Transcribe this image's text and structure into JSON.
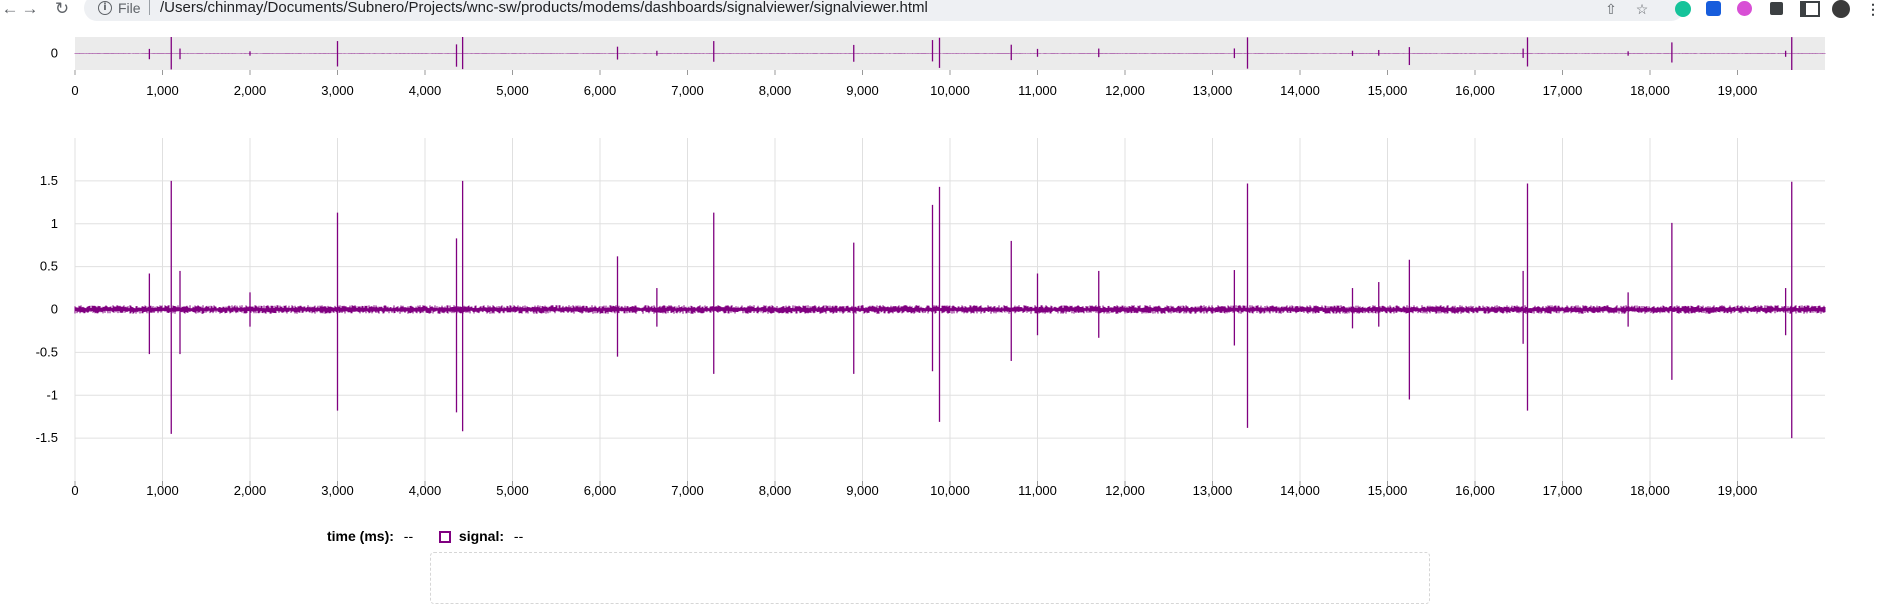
{
  "browser": {
    "back_icon": "arrow-left-icon",
    "forward_icon": "arrow-right-icon",
    "reload_icon": "reload-icon",
    "scheme_label": "File",
    "url": "/Users/chinmay/Documents/Subnero/Projects/wnc-sw/products/modems/dashboards/signalviewer/signalviewer.html",
    "toolbar_icons": [
      "share-icon",
      "star-icon",
      "grammarly-extension-icon",
      "bitwarden-extension-icon",
      "pink-extension-icon",
      "puzzle-extensions-icon",
      "sidebar-icon",
      "profile-avatar",
      "more-menu-icon"
    ]
  },
  "legend": {
    "time_label": "time (ms):",
    "time_value": "--",
    "signal_label": "signal:",
    "signal_value": "--"
  },
  "colors": {
    "signal": "#800080",
    "overview_bg": "#ebebeb",
    "grid": "#e0e0e0"
  },
  "chart_data": [
    {
      "type": "line",
      "name": "overview",
      "title": "",
      "xlabel": "",
      "ylabel": "",
      "xlim": [
        0,
        20000
      ],
      "ylim": [
        -1.5,
        1.5
      ],
      "x_ticks": [
        0,
        1000,
        2000,
        3000,
        4000,
        5000,
        6000,
        7000,
        8000,
        9000,
        10000,
        11000,
        12000,
        13000,
        14000,
        15000,
        16000,
        17000,
        18000,
        19000
      ],
      "x_tick_labels": [
        "0",
        "1,000",
        "2,000",
        "3,000",
        "4,000",
        "5,000",
        "6,000",
        "7,000",
        "8,000",
        "9,000",
        "10,000",
        "11,000",
        "12,000",
        "13,000",
        "14,000",
        "15,000",
        "16,000",
        "17,000",
        "18,000",
        "19,000"
      ],
      "y_ticks": [
        0
      ],
      "y_tick_labels": [
        "0"
      ],
      "grid": false
    },
    {
      "type": "line",
      "name": "main",
      "title": "",
      "xlabel": "",
      "ylabel": "",
      "xlim": [
        0,
        20000
      ],
      "ylim": [
        -2,
        2
      ],
      "x_ticks": [
        0,
        1000,
        2000,
        3000,
        4000,
        5000,
        6000,
        7000,
        8000,
        9000,
        10000,
        11000,
        12000,
        13000,
        14000,
        15000,
        16000,
        17000,
        18000,
        19000
      ],
      "x_tick_labels": [
        "0",
        "1,000",
        "2,000",
        "3,000",
        "4,000",
        "5,000",
        "6,000",
        "7,000",
        "8,000",
        "9,000",
        "10,000",
        "11,000",
        "12,000",
        "13,000",
        "14,000",
        "15,000",
        "16,000",
        "17,000",
        "18,000",
        "19,000"
      ],
      "y_ticks": [
        1.5,
        1,
        0.5,
        0,
        -0.5,
        -1,
        -1.5
      ],
      "y_tick_labels": [
        "1.5",
        "1",
        "0.5",
        "0",
        "-0.5",
        "-1",
        "-1.5"
      ],
      "grid": true,
      "series": [
        {
          "baseline_noise_amplitude": 0.05,
          "spikes": [
            {
              "x": 850,
              "max": 0.42,
              "min": -0.52
            },
            {
              "x": 1100,
              "max": 1.5,
              "min": -1.45
            },
            {
              "x": 1200,
              "max": 0.45,
              "min": -0.52
            },
            {
              "x": 2000,
              "max": 0.2,
              "min": -0.2
            },
            {
              "x": 3000,
              "max": 1.13,
              "min": -1.18
            },
            {
              "x": 4360,
              "max": 0.83,
              "min": -1.2
            },
            {
              "x": 4430,
              "max": 1.5,
              "min": -1.42
            },
            {
              "x": 6200,
              "max": 0.62,
              "min": -0.55
            },
            {
              "x": 6650,
              "max": 0.25,
              "min": -0.2
            },
            {
              "x": 7300,
              "max": 1.13,
              "min": -0.75
            },
            {
              "x": 8900,
              "max": 0.78,
              "min": -0.75
            },
            {
              "x": 9800,
              "max": 1.22,
              "min": -0.72
            },
            {
              "x": 9880,
              "max": 1.43,
              "min": -1.31
            },
            {
              "x": 10700,
              "max": 0.8,
              "min": -0.6
            },
            {
              "x": 11000,
              "max": 0.42,
              "min": -0.3
            },
            {
              "x": 11700,
              "max": 0.45,
              "min": -0.33
            },
            {
              "x": 13250,
              "max": 0.46,
              "min": -0.42
            },
            {
              "x": 13400,
              "max": 1.47,
              "min": -1.38
            },
            {
              "x": 14600,
              "max": 0.25,
              "min": -0.22
            },
            {
              "x": 14900,
              "max": 0.32,
              "min": -0.2
            },
            {
              "x": 15250,
              "max": 0.58,
              "min": -1.05
            },
            {
              "x": 16550,
              "max": 0.45,
              "min": -0.4
            },
            {
              "x": 16600,
              "max": 1.47,
              "min": -1.18
            },
            {
              "x": 17750,
              "max": 0.2,
              "min": -0.2
            },
            {
              "x": 18250,
              "max": 1.01,
              "min": -0.82
            },
            {
              "x": 19550,
              "max": 0.25,
              "min": -0.3
            },
            {
              "x": 19620,
              "max": 1.49,
              "min": -1.5
            }
          ]
        }
      ]
    }
  ]
}
